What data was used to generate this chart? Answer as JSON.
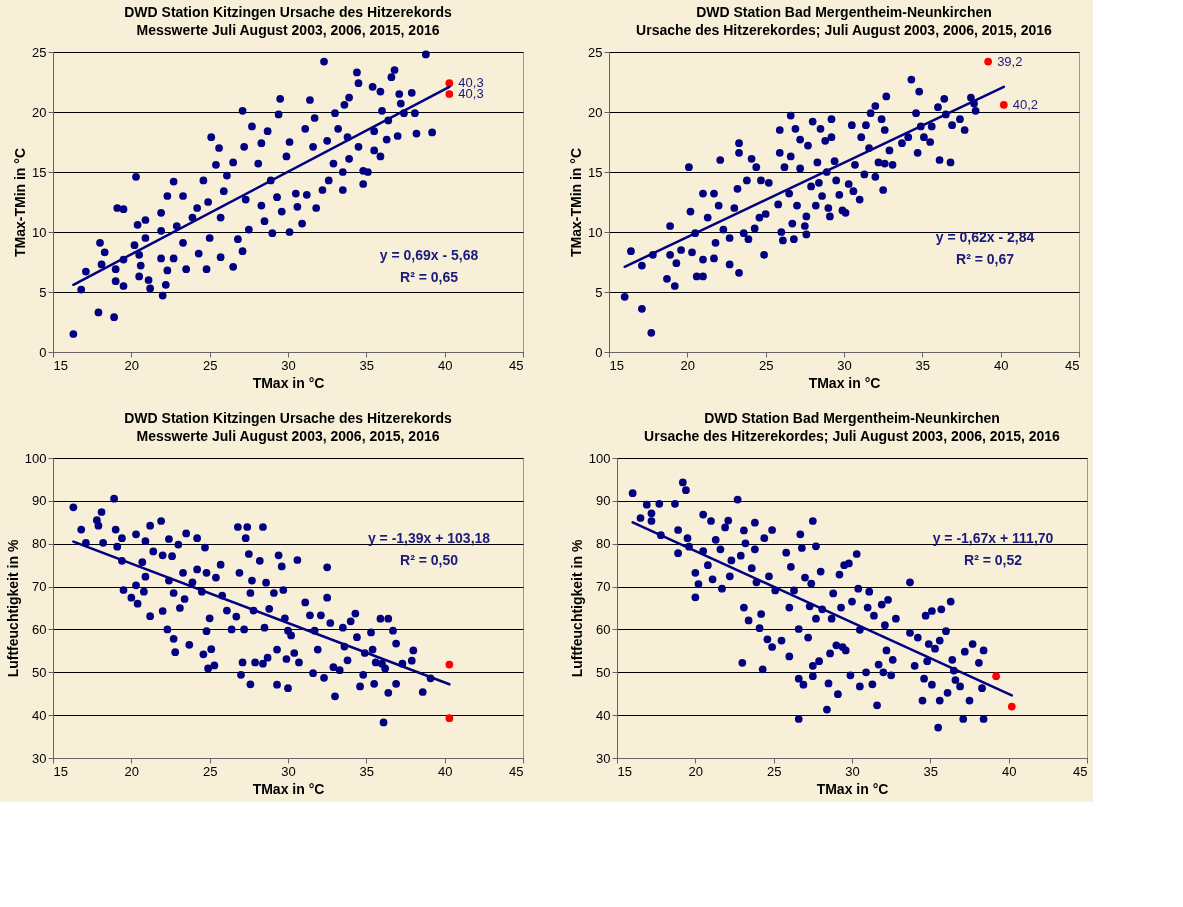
{
  "chart_data": [
    {
      "type": "scatter",
      "title": "DWD Station Kitzingen Ursache des Hitzerekords",
      "subtitle": "Messwerte Juli August 2003, 2006, 2015, 2016",
      "xlabel": "TMax in °C",
      "ylabel": "TMax-TMin in °C",
      "xlim": [
        15,
        45
      ],
      "xticks": [
        15,
        20,
        25,
        30,
        35,
        40,
        45
      ],
      "ylim": [
        0,
        25
      ],
      "yticks": [
        0,
        5,
        10,
        15,
        20,
        25
      ],
      "grid": "y",
      "marker": "circle",
      "series": [
        {
          "color": "#000080",
          "x": [
            16.3,
            16.8,
            17.1,
            18.0,
            18.1,
            18.3,
            17.9,
            18.9,
            19.0,
            19.0,
            19.5,
            19.5,
            19.1,
            19.5,
            20.3,
            20.4,
            20.2,
            20.5,
            20.6,
            20.5,
            21.1,
            21.2,
            20.9,
            20.9,
            22.0,
            21.9,
            21.9,
            21.9,
            22.3,
            22.7,
            22.3,
            22.2,
            22.7,
            22.9,
            23.3,
            23.3,
            23.5,
            23.9,
            24.2,
            24.3,
            24.8,
            24.9,
            25.0,
            24.6,
            25.1,
            25.4,
            25.6,
            25.7,
            25.7,
            25.9,
            26.1,
            26.5,
            26.5,
            26.8,
            27.1,
            27.1,
            27.2,
            27.3,
            27.5,
            27.7,
            28.1,
            28.3,
            28.3,
            28.5,
            28.7,
            28.9,
            29.0,
            29.3,
            29.4,
            29.5,
            29.6,
            29.9,
            30.1,
            30.1,
            30.5,
            30.6,
            30.9,
            31.1,
            31.2,
            31.4,
            31.6,
            31.8,
            31.7,
            32.2,
            32.3,
            32.5,
            32.6,
            32.9,
            33.0,
            33.2,
            33.5,
            33.5,
            33.6,
            33.8,
            33.9,
            33.9,
            34.4,
            34.5,
            34.5,
            34.8,
            34.8,
            35.1,
            35.4,
            35.5,
            35.5,
            35.9,
            35.9,
            36.0,
            36.3,
            36.4,
            36.6,
            36.8,
            37.0,
            37.1,
            37.2,
            37.4,
            37.9,
            38.1,
            38.2,
            38.8,
            39.2
          ],
          "values": [
            1.5,
            5.2,
            6.7,
            9.1,
            7.3,
            8.3,
            3.3,
            2.9,
            6.9,
            5.9,
            5.5,
            7.7,
            12.0,
            11.9,
            14.6,
            10.6,
            8.9,
            8.1,
            7.2,
            6.3,
            6.0,
            5.3,
            11.0,
            9.5,
            4.7,
            7.8,
            10.1,
            11.6,
            13.0,
            14.2,
            6.8,
            5.6,
            7.8,
            10.5,
            9.1,
            13.0,
            6.9,
            11.2,
            12.0,
            8.2,
            6.9,
            12.5,
            9.5,
            14.3,
            17.9,
            15.6,
            17.0,
            11.2,
            7.9,
            13.4,
            14.7,
            7.1,
            15.8,
            9.4,
            8.4,
            20.1,
            17.1,
            12.7,
            10.2,
            18.8,
            15.7,
            17.4,
            12.2,
            10.9,
            18.4,
            14.3,
            9.9,
            12.9,
            19.8,
            21.1,
            11.7,
            16.3,
            10.0,
            17.5,
            13.2,
            12.1,
            10.7,
            18.6,
            13.1,
            21.0,
            17.1,
            12.0,
            19.5,
            13.5,
            24.2,
            17.6,
            14.3,
            15.7,
            19.9,
            18.6,
            13.5,
            15.0,
            20.6,
            17.9,
            21.2,
            16.1,
            23.3,
            22.4,
            17.1,
            14.0,
            15.1,
            15.0,
            22.1,
            18.4,
            16.8,
            21.7,
            16.3,
            20.1,
            17.7,
            19.3,
            22.9,
            23.5,
            18.0,
            21.5,
            20.7,
            19.9,
            21.6,
            19.9,
            18.2,
            24.8,
            18.3
          ]
        },
        {
          "color": "#ff0000",
          "x": [
            40.3,
            40.3
          ],
          "values": [
            22.4,
            21.5
          ]
        },
        {
          "type": "line",
          "color": "#000080",
          "line_style": "solid",
          "marker": "none",
          "x": [
            16.3,
            40.3
          ],
          "values": [
            5.6,
            22.1
          ]
        }
      ],
      "annotations": [
        "y = 0,69x - 5,68",
        "R² = 0,65",
        {
          "text": "40,3",
          "x": 40.3,
          "y": 22.4
        },
        {
          "text": "40,3",
          "x": 40.3,
          "y": 21.5
        }
      ]
    },
    {
      "type": "scatter",
      "title": "DWD Station Bad Mergentheim-Neunkirchen",
      "subtitle": "Ursache des Hitzerekordes; Juli August  2003, 2006, 2015, 2016",
      "xlabel": "TMax in °C",
      "ylabel": "TMax-TMin in °C",
      "xlim": [
        15,
        45
      ],
      "xticks": [
        15,
        20,
        25,
        30,
        35,
        40,
        45
      ],
      "ylim": [
        0,
        25
      ],
      "yticks": [
        0,
        5,
        10,
        15,
        20,
        25
      ],
      "grid": "y",
      "marker": "circle",
      "series": [
        {
          "color": "#000080",
          "x": [
            16.0,
            16.4,
            17.1,
            17.7,
            17.1,
            17.8,
            18.7,
            18.9,
            19.2,
            19.3,
            18.9,
            19.6,
            20.1,
            20.2,
            20.3,
            20.5,
            20.6,
            21.0,
            21.0,
            21.0,
            21.3,
            21.7,
            21.7,
            21.8,
            22.0,
            22.1,
            22.3,
            22.7,
            22.7,
            23.0,
            23.2,
            23.3,
            23.3,
            23.3,
            23.6,
            23.8,
            23.9,
            24.1,
            24.3,
            24.4,
            24.6,
            24.7,
            24.9,
            25.0,
            25.2,
            25.8,
            25.9,
            25.9,
            26.0,
            26.1,
            26.2,
            26.5,
            26.6,
            26.6,
            26.7,
            26.8,
            26.9,
            27.0,
            27.2,
            27.2,
            27.5,
            27.6,
            27.6,
            27.7,
            27.9,
            28.0,
            28.2,
            28.3,
            28.4,
            28.5,
            28.6,
            28.8,
            28.9,
            29.0,
            29.1,
            29.2,
            29.2,
            29.4,
            29.5,
            29.7,
            29.9,
            30.1,
            30.3,
            30.5,
            30.6,
            30.7,
            31.0,
            31.1,
            31.3,
            31.4,
            31.6,
            31.7,
            32.0,
            32.0,
            32.2,
            32.4,
            32.5,
            32.6,
            32.6,
            32.7,
            32.9,
            33.1,
            33.7,
            34.1,
            34.3,
            34.6,
            34.7,
            34.8,
            34.9,
            35.1,
            35.5,
            35.6,
            36.0,
            36.1,
            36.4,
            36.5,
            36.8,
            36.9,
            37.4,
            37.7,
            38.1,
            38.3,
            38.4
          ],
          "values": [
            4.6,
            8.4,
            3.6,
            1.6,
            7.2,
            8.1,
            6.1,
            10.5,
            5.5,
            7.4,
            8.1,
            8.5,
            15.4,
            11.7,
            8.3,
            9.9,
            6.3,
            13.2,
            6.3,
            7.7,
            11.2,
            13.2,
            7.8,
            9.1,
            12.2,
            16.0,
            10.2,
            7.3,
            9.5,
            12.0,
            13.6,
            17.4,
            6.6,
            16.6,
            9.9,
            14.3,
            9.4,
            16.1,
            10.3,
            15.4,
            11.2,
            14.3,
            8.1,
            11.5,
            14.1,
            12.3,
            18.5,
            16.6,
            10.0,
            9.3,
            15.4,
            13.2,
            16.3,
            19.7,
            10.7,
            9.4,
            18.6,
            12.2,
            17.7,
            15.3,
            10.5,
            11.3,
            9.8,
            17.2,
            13.8,
            19.2,
            12.2,
            15.8,
            14.1,
            18.6,
            13.0,
            17.6,
            15.0,
            12.0,
            11.3,
            19.4,
            17.9,
            15.9,
            14.3,
            13.1,
            11.8,
            11.6,
            14.0,
            18.9,
            13.4,
            15.6,
            12.7,
            17.9,
            14.8,
            18.9,
            17.0,
            19.9,
            20.5,
            14.6,
            15.8,
            19.4,
            13.5,
            18.5,
            15.7,
            21.3,
            16.8,
            15.6,
            17.4,
            17.9,
            22.7,
            19.9,
            16.6,
            21.7,
            18.8,
            17.9,
            17.5,
            18.8,
            20.4,
            16.0,
            21.1,
            19.8,
            15.8,
            18.9,
            19.4,
            18.5,
            21.2,
            20.7,
            20.1
          ]
        },
        {
          "color": "#ff0000",
          "x": [
            39.2,
            40.2
          ],
          "values": [
            24.2,
            20.6
          ]
        },
        {
          "type": "line",
          "color": "#000080",
          "line_style": "solid",
          "marker": "none",
          "x": [
            16.0,
            40.2
          ],
          "values": [
            7.1,
            22.1
          ]
        }
      ],
      "annotations": [
        "y = 0,62x - 2,84",
        "R² = 0,67",
        {
          "text": "39,2",
          "x": 39.2,
          "y": 24.2
        },
        {
          "text": "40,2",
          "x": 40.2,
          "y": 20.6
        }
      ]
    },
    {
      "type": "scatter",
      "title": "DWD Station Kitzingen Ursache des Hitzerekords",
      "subtitle": "Messwerte Juli August 2003, 2006, 2015, 2016",
      "xlabel": "TMax in °C",
      "ylabel": "Luftfeuchtigkeit in %",
      "xlim": [
        15,
        45
      ],
      "xticks": [
        15,
        20,
        25,
        30,
        35,
        40,
        45
      ],
      "ylim": [
        30,
        100
      ],
      "yticks": [
        30,
        40,
        50,
        60,
        70,
        80,
        90,
        100
      ],
      "grid": "y",
      "marker": "circle",
      "series": [
        {
          "color": "#000080",
          "x": [
            16.3,
            16.8,
            17.1,
            17.8,
            18.1,
            17.9,
            18.2,
            18.9,
            19.0,
            19.1,
            19.4,
            19.4,
            19.5,
            20.0,
            20.3,
            20.3,
            20.4,
            20.7,
            20.8,
            20.9,
            20.9,
            21.2,
            21.2,
            21.4,
            21.9,
            22.0,
            22.0,
            22.3,
            22.4,
            22.4,
            22.6,
            22.7,
            22.8,
            22.7,
            23.0,
            23.1,
            23.3,
            23.4,
            23.5,
            23.7,
            23.9,
            24.2,
            24.2,
            24.5,
            24.7,
            24.6,
            24.8,
            24.8,
            24.9,
            25.0,
            25.1,
            25.3,
            25.4,
            25.7,
            25.8,
            26.1,
            26.4,
            26.7,
            26.8,
            26.9,
            27.0,
            27.1,
            27.2,
            27.3,
            27.4,
            27.5,
            27.6,
            27.6,
            27.7,
            27.8,
            27.9,
            28.2,
            28.4,
            28.4,
            28.5,
            28.6,
            28.7,
            28.8,
            29.1,
            29.3,
            29.3,
            29.4,
            29.6,
            29.7,
            29.8,
            29.9,
            30.0,
            30.0,
            30.2,
            30.4,
            30.6,
            30.7,
            31.1,
            31.4,
            31.6,
            31.7,
            31.9,
            32.1,
            32.3,
            32.5,
            32.5,
            32.7,
            32.9,
            33.0,
            33.3,
            33.5,
            33.6,
            33.8,
            34.0,
            34.3,
            34.4,
            34.6,
            34.8,
            34.9,
            35.3,
            35.4,
            35.5,
            35.6,
            35.9,
            36.0,
            36.1,
            36.2,
            36.4,
            36.4,
            36.7,
            36.9,
            36.9,
            37.3,
            37.9,
            38.0,
            38.6,
            39.1
          ],
          "values": [
            88.5,
            83.3,
            80.2,
            85.5,
            87.4,
            84.2,
            80.2,
            90.5,
            83.3,
            79.3,
            81.3,
            76.0,
            69.2,
            67.4,
            82.2,
            70.3,
            66.0,
            75.7,
            68.8,
            80.6,
            72.3,
            63.1,
            84.2,
            78.2,
            85.3,
            77.3,
            64.3,
            60.0,
            81.1,
            71.4,
            77.1,
            57.8,
            54.7,
            68.5,
            79.8,
            65.0,
            73.2,
            67.1,
            82.4,
            56.4,
            71.0,
            81.3,
            74.0,
            68.8,
            79.1,
            54.2,
            73.2,
            59.6,
            50.9,
            62.6,
            55.4,
            51.6,
            72.1,
            75.1,
            67.9,
            64.4,
            60.0,
            63.0,
            83.9,
            73.2,
            49.4,
            52.3,
            60.0,
            81.3,
            83.9,
            77.6,
            47.2,
            68.5,
            71.4,
            64.4,
            52.3,
            76.0,
            83.9,
            52.0,
            60.4,
            70.9,
            53.4,
            64.8,
            68.5,
            55.3,
            47.1,
            77.3,
            74.7,
            69.2,
            62.6,
            53.1,
            46.3,
            59.7,
            58.6,
            54.5,
            76.2,
            52.3,
            66.3,
            63.3,
            49.8,
            59.7,
            55.3,
            63.3,
            48.7,
            74.5,
            67.4,
            61.5,
            51.2,
            44.4,
            50.5,
            60.4,
            56.0,
            52.8,
            61.9,
            63.7,
            58.2,
            46.7,
            49.4,
            54.5,
            59.3,
            55.3,
            47.3,
            52.3,
            62.5,
            52.0,
            38.3,
            50.9,
            62.5,
            45.2,
            59.7,
            56.7,
            47.3,
            52.0,
            52.7,
            55.1,
            45.4,
            48.6
          ]
        },
        {
          "color": "#ff0000",
          "x": [
            40.3,
            40.3
          ],
          "values": [
            51.8,
            39.3
          ]
        },
        {
          "type": "line",
          "color": "#000080",
          "line_style": "solid",
          "marker": "none",
          "x": [
            16.3,
            40.3
          ],
          "values": [
            80.5,
            47.2
          ]
        }
      ],
      "annotations": [
        "y = -1,39x + 103,18",
        "R² = 0,50"
      ]
    },
    {
      "type": "scatter",
      "title": "DWD Station Bad Mergentheim-Neunkirchen",
      "subtitle": "Ursache des Hitzerekordes; Juli August  2003, 2006, 2015, 2016",
      "xlabel": "TMax in °C",
      "ylabel": "Luftfeuchtigkeit in %",
      "xlim": [
        15,
        45
      ],
      "xticks": [
        15,
        20,
        25,
        30,
        35,
        40,
        45
      ],
      "ylim": [
        30,
        100
      ],
      "yticks": [
        30,
        40,
        50,
        60,
        70,
        80,
        90,
        100
      ],
      "grid": "y",
      "marker": "circle",
      "series": [
        {
          "color": "#000080",
          "x": [
            16.0,
            16.5,
            16.9,
            17.2,
            17.2,
            17.7,
            17.8,
            18.7,
            18.9,
            18.9,
            19.2,
            19.4,
            19.5,
            19.6,
            20.0,
            20.0,
            20.2,
            20.5,
            20.5,
            20.8,
            21.0,
            21.1,
            21.3,
            21.6,
            21.7,
            21.9,
            22.1,
            22.2,
            22.3,
            22.7,
            22.9,
            23.0,
            23.1,
            23.1,
            23.2,
            23.4,
            23.6,
            23.8,
            23.8,
            23.9,
            24.2,
            24.1,
            24.3,
            24.4,
            24.6,
            24.7,
            24.9,
            24.9,
            25.1,
            25.5,
            25.8,
            26.0,
            26.0,
            26.1,
            26.3,
            26.6,
            26.6,
            26.6,
            26.7,
            26.8,
            26.9,
            27.0,
            27.2,
            27.3,
            27.4,
            27.5,
            27.5,
            27.5,
            27.7,
            27.7,
            27.9,
            28.0,
            28.1,
            28.4,
            28.5,
            28.6,
            28.7,
            28.8,
            29.0,
            29.1,
            29.2,
            29.3,
            29.4,
            29.5,
            29.6,
            29.8,
            29.9,
            30.0,
            30.3,
            30.4,
            30.5,
            30.5,
            30.9,
            31.0,
            31.1,
            31.3,
            31.4,
            31.6,
            31.7,
            31.9,
            32.0,
            32.1,
            32.2,
            32.3,
            32.5,
            32.6,
            32.8,
            33.7,
            33.7,
            34.0,
            34.2,
            34.5,
            34.6,
            34.7,
            34.8,
            34.9,
            35.1,
            35.1,
            35.3,
            35.5,
            35.6,
            35.6,
            35.7,
            36.0,
            36.1,
            36.3,
            36.4,
            36.5,
            36.6,
            36.9,
            37.1,
            37.2,
            37.5,
            37.7,
            38.1,
            38.3,
            38.4,
            38.4
          ],
          "values": [
            91.8,
            86.0,
            89.1,
            87.1,
            85.3,
            89.3,
            82.0,
            89.3,
            83.2,
            77.8,
            94.3,
            92.5,
            81.3,
            79.3,
            73.2,
            67.5,
            70.6,
            86.8,
            78.3,
            75.0,
            85.3,
            71.7,
            80.9,
            78.7,
            69.5,
            83.8,
            85.4,
            72.4,
            76.1,
            90.3,
            77.2,
            52.2,
            83.1,
            65.1,
            80.1,
            62.1,
            74.3,
            84.9,
            78.7,
            71.0,
            63.6,
            60.3,
            50.7,
            81.3,
            57.7,
            72.4,
            55.9,
            83.2,
            69.1,
            57.4,
            77.9,
            53.7,
            65.1,
            74.6,
            69.1,
            48.5,
            60.1,
            39.1,
            82.2,
            79.0,
            47.1,
            72.1,
            58.1,
            65.4,
            70.7,
            51.5,
            85.3,
            49.1,
            79.4,
            62.5,
            52.6,
            73.5,
            64.7,
            41.3,
            47.4,
            54.4,
            62.5,
            68.4,
            56.3,
            44.9,
            72.8,
            65.1,
            55.9,
            75.0,
            55.1,
            75.4,
            49.3,
            66.5,
            77.6,
            69.5,
            59.9,
            46.7,
            50.0,
            65.1,
            68.8,
            47.2,
            63.2,
            42.3,
            51.8,
            65.8,
            50.0,
            61.0,
            55.1,
            66.9,
            49.3,
            52.9,
            62.5,
            71.0,
            59.2,
            51.5,
            58.1,
            43.4,
            48.5,
            63.2,
            52.6,
            56.6,
            64.3,
            47.1,
            55.5,
            37.1,
            57.4,
            43.4,
            64.7,
            59.6,
            45.2,
            66.5,
            52.9,
            50.4,
            48.2,
            46.7,
            39.1,
            54.8,
            43.4,
            56.6,
            52.2,
            46.3,
            55.1,
            39.1
          ]
        },
        {
          "color": "#ff0000",
          "x": [
            39.2,
            40.2
          ],
          "values": [
            49.1,
            42.0
          ]
        },
        {
          "type": "line",
          "color": "#000080",
          "line_style": "solid",
          "marker": "none",
          "x": [
            16.0,
            40.2
          ],
          "values": [
            85.0,
            44.6
          ]
        }
      ],
      "annotations": [
        "y = -1,67x + 111,70",
        "R² = 0,52"
      ]
    }
  ]
}
